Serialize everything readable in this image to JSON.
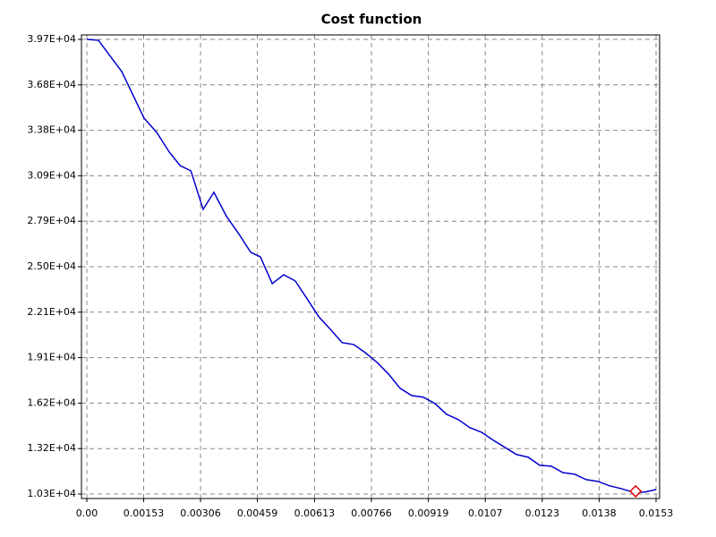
{
  "chart_data": {
    "type": "line",
    "title": "Cost function",
    "x": [
      0,
      0.000313,
      0.000939,
      0.00154,
      0.00188,
      0.00222,
      0.00251,
      0.0028,
      0.00313,
      0.00342,
      0.00376,
      0.0041,
      0.00441,
      0.00467,
      0.00499,
      0.0053,
      0.00561,
      0.00593,
      0.00624,
      0.00655,
      0.00687,
      0.00718,
      0.00749,
      0.00781,
      0.00812,
      0.00843,
      0.00874,
      0.00906,
      0.00937,
      0.00968,
      0.01,
      0.01031,
      0.01062,
      0.01094,
      0.01125,
      0.01156,
      0.01188,
      0.01219,
      0.0125,
      0.01281,
      0.01313,
      0.01344,
      0.01375,
      0.01407,
      0.01438,
      0.0147,
      0.01501,
      0.01532
    ],
    "series": [
      {
        "color": "#0000cc",
        "values": [
          39700,
          39640,
          37620,
          34610,
          33690,
          32410,
          31540,
          31200,
          28710,
          29810,
          28250,
          27090,
          25930,
          25640,
          23910,
          24480,
          24080,
          22920,
          21770,
          20960,
          20090,
          19970,
          19450,
          18810,
          18060,
          17140,
          16670,
          16560,
          16150,
          15460,
          15110,
          14590,
          14300,
          13780,
          13320,
          12860,
          12680,
          12160,
          12100,
          11690,
          11580,
          11230,
          11120,
          10830,
          10650,
          10420,
          10420,
          10590
        ]
      }
    ],
    "highlight": {
      "x": 0.01477,
      "y": 10480,
      "color": "#dd0000"
    },
    "xlim": [
      -0.000145,
      0.015416
    ],
    "xticks": [
      {
        "value": 0,
        "label": "0.00"
      },
      0.00153,
      0.00306,
      0.00459,
      {
        "value": 0.006128,
        "label": "0.00613"
      },
      0.00766,
      {
        "value": 0.009192,
        "label": "0.00919"
      },
      {
        "value": 0.010724,
        "label": "0.0107"
      },
      {
        "value": 0.012256,
        "label": "0.0123"
      },
      {
        "value": 0.013788,
        "label": "0.0138"
      },
      {
        "value": 0.01532,
        "label": "0.0153"
      }
    ],
    "ylim": [
      10010,
      39990
    ],
    "yticks": [
      {
        "value": 10300,
        "label": "1.03E+04"
      },
      {
        "value": 13240,
        "label": "1.32E+04"
      },
      {
        "value": 16180,
        "label": "1.62E+04"
      },
      {
        "value": 19120,
        "label": "1.91E+04"
      },
      {
        "value": 22060,
        "label": "2.21E+04"
      },
      {
        "value": 25000,
        "label": "2.50E+04"
      },
      {
        "value": 27940,
        "label": "2.79E+04"
      },
      {
        "value": 30880,
        "label": "3.09E+04"
      },
      {
        "value": 33820,
        "label": "3.38E+04"
      },
      {
        "value": 36760,
        "label": "3.68E+04"
      },
      {
        "value": 39700,
        "label": "3.97E+04"
      }
    ],
    "grid": true
  }
}
